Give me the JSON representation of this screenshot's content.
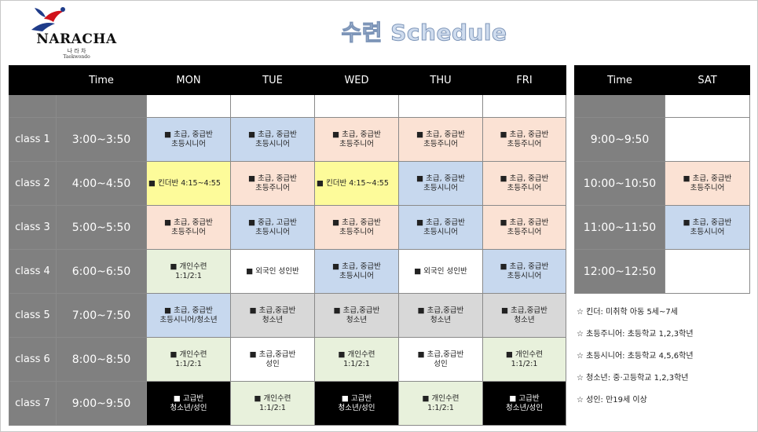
{
  "logo": {
    "name": "NARACHA",
    "korean": "나 라 차",
    "sub": "Taekwondo"
  },
  "title": "수련 Schedule",
  "weekday": {
    "headers": [
      "",
      "Time",
      "MON",
      "TUE",
      "WED",
      "THU",
      "FRI"
    ],
    "rows": [
      {
        "class": "class 1",
        "time": "3:00~3:50",
        "cells": [
          {
            "text": "■ 초급, 중급반\n초등시니어",
            "color": "blue"
          },
          {
            "text": "■ 초급, 중급반\n초등시니어",
            "color": "blue"
          },
          {
            "text": "■ 초급, 중급반\n초등주니어",
            "color": "peach"
          },
          {
            "text": "■ 초급, 중급반\n초등주니어",
            "color": "peach"
          },
          {
            "text": "■ 초급, 중급반\n초등주니어",
            "color": "peach"
          }
        ]
      },
      {
        "class": "class 2",
        "time": "4:00~4:50",
        "cells": [
          {
            "text": "■ 킨더반 4:15~4:55",
            "color": "yellow"
          },
          {
            "text": "■ 초급, 중급반\n초등주니어",
            "color": "peach"
          },
          {
            "text": "■ 킨더반 4:15~4:55",
            "color": "yellow"
          },
          {
            "text": "■ 초급, 중급반\n초등시니어",
            "color": "blue"
          },
          {
            "text": "■ 초급, 중급반\n초등주니어",
            "color": "peach"
          }
        ]
      },
      {
        "class": "class 3",
        "time": "5:00~5:50",
        "cells": [
          {
            "text": "■ 초급, 중급반\n초등주니어",
            "color": "peach"
          },
          {
            "text": "■ 중급, 고급반\n초등시니어",
            "color": "blue"
          },
          {
            "text": "■ 초급, 중급반\n초등주니어",
            "color": "peach"
          },
          {
            "text": "■ 초급, 중급반\n초등시니어",
            "color": "blue"
          },
          {
            "text": "■ 초급, 중급반\n초등주니어",
            "color": "peach"
          }
        ]
      },
      {
        "class": "class 4",
        "time": "6:00~6:50",
        "cells": [
          {
            "text": "■ 개인수련\n1:1/2:1",
            "color": "green"
          },
          {
            "text": "■ 외국인 성인반",
            "color": "white"
          },
          {
            "text": "■ 초급, 중급반\n초등시니어",
            "color": "blue"
          },
          {
            "text": "■ 외국인 성인반",
            "color": "white"
          },
          {
            "text": "■ 초급, 중급반\n초등시니어",
            "color": "blue"
          }
        ]
      },
      {
        "class": "class 5",
        "time": "7:00~7:50",
        "cells": [
          {
            "text": "■ 초급, 중급반\n초등시니어/청소년",
            "color": "blue"
          },
          {
            "text": "■ 초급,중급반\n청소년",
            "color": "gray"
          },
          {
            "text": "■ 초급,중급반\n청소년",
            "color": "gray"
          },
          {
            "text": "■ 초급,중급반\n청소년",
            "color": "gray"
          },
          {
            "text": "■ 초급,중급반\n청소년",
            "color": "gray"
          }
        ]
      },
      {
        "class": "class 6",
        "time": "8:00~8:50",
        "cells": [
          {
            "text": "■ 개인수련\n1:1/2:1",
            "color": "green"
          },
          {
            "text": "■ 초급,중급반\n성인",
            "color": "white"
          },
          {
            "text": "■ 개인수련\n1:1/2:1",
            "color": "green"
          },
          {
            "text": "■ 초급,중급반\n성인",
            "color": "white"
          },
          {
            "text": "■ 개인수련\n1:1/2:1",
            "color": "green"
          }
        ]
      },
      {
        "class": "class 7",
        "time": "9:00~9:50",
        "cells": [
          {
            "text": "■ 고급반\n청소년/성인",
            "color": "black"
          },
          {
            "text": "■ 개인수련\n1:1/2:1",
            "color": "green"
          },
          {
            "text": "■ 고급반\n청소년/성인",
            "color": "black"
          },
          {
            "text": "■ 개인수련\n1:1/2:1",
            "color": "green"
          },
          {
            "text": "■ 고급반\n청소년/성인",
            "color": "black"
          }
        ]
      }
    ]
  },
  "saturday": {
    "headers": [
      "Time",
      "SAT"
    ],
    "rows": [
      {
        "time": "9:00~9:50",
        "cell": {
          "text": "",
          "color": "white"
        }
      },
      {
        "time": "10:00~10:50",
        "cell": {
          "text": "■ 초급, 중급반\n초등주니어",
          "color": "peach"
        }
      },
      {
        "time": "11:00~11:50",
        "cell": {
          "text": "■ 초급, 중급반\n초등시니어",
          "color": "blue"
        }
      },
      {
        "time": "12:00~12:50",
        "cell": {
          "text": "",
          "color": "white"
        }
      }
    ]
  },
  "legend": [
    "☆ 킨더: 미취학 아동 5세~7세",
    "☆ 초등주니어: 초등학교 1,2,3학년",
    "☆ 초등시니어: 초등학교 4,5,6학년",
    "☆ 청소년:  중·고등학교 1,2,3학년",
    "☆ 성인: 만19세 이상"
  ],
  "colors": {
    "blue": "#c7d8ee",
    "peach": "#fbe2d4",
    "yellow": "#fdfb9a",
    "green": "#e8f1dc",
    "white": "#ffffff",
    "gray": "#d8d8d8",
    "black": "#000000",
    "header": "#000000",
    "label": "#808080"
  }
}
